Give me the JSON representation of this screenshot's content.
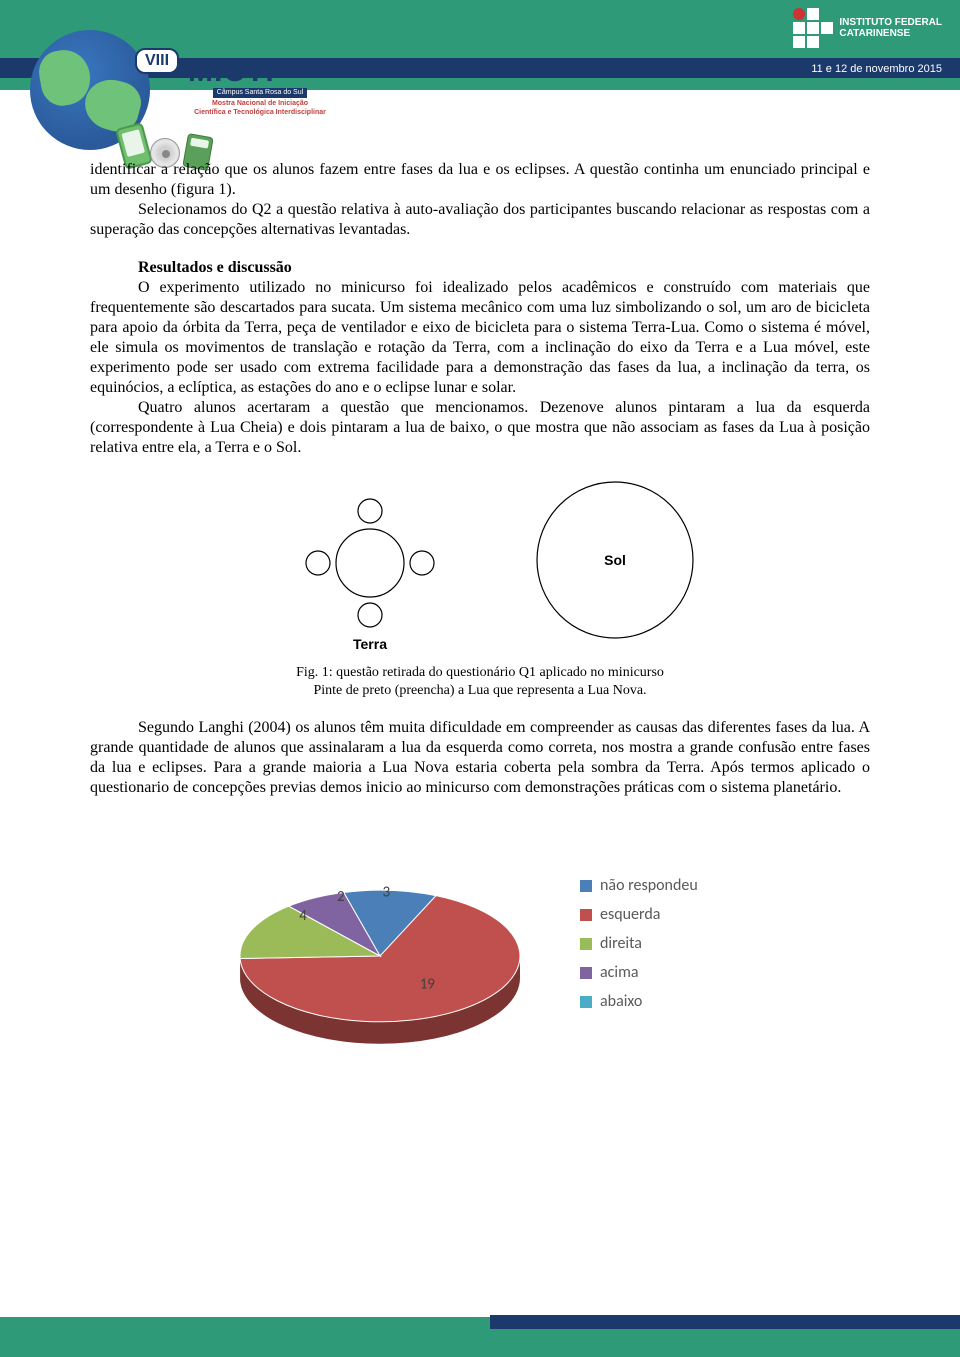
{
  "header": {
    "date_text": "11 e 12 de novembro 2015",
    "inst_line1": "INSTITUTO FEDERAL",
    "inst_line2": "CATARINENSE",
    "viii": "VIII",
    "micti": "MICTI",
    "campus": "Câmpus Santa Rosa do Sul",
    "sub1": "Mostra Nacional de Iniciação",
    "sub2": "Científica e Tecnológica Interdisciplinar"
  },
  "para1": "identificar a relação que os alunos fazem entre fases da lua e os eclipses. A questão continha um enunciado principal e um desenho (figura 1).",
  "para2": "Selecionamos do Q2 a questão relativa à auto-avaliação dos participantes buscando relacionar as respostas com a superação das concepções alternativas levantadas.",
  "section_title": "Resultados e discussão",
  "para3": "O experimento utilizado no minicurso foi idealizado pelos acadêmicos e construído com materiais que frequentemente são descartados para sucata. Um sistema mecânico com uma luz simbolizando o sol, um aro de bicicleta para apoio da órbita da Terra, peça de ventilador e eixo de bicicleta para o sistema Terra-Lua. Como o sistema é móvel, ele simula os movimentos de translação e rotação da Terra, com a inclinação do eixo da Terra e a Lua móvel, este experimento pode ser usado com extrema facilidade para a demonstração das fases da lua, a inclinação da terra, os equinócios, a eclíptica, as estações do ano e o eclipse lunar e solar.",
  "para4": "Quatro alunos acertaram a questão que mencionamos. Dezenove alunos pintaram a lua da esquerda (correspondente à Lua Cheia) e dois pintaram a lua de baixo, o que mostra que não associam as fases da Lua à posição relativa entre ela, a Terra e o Sol.",
  "fig1": {
    "terra_label": "Terra",
    "sol_label": "Sol",
    "terra_radius": 34,
    "moon_radius": 12,
    "sol_radius": 78,
    "label_fontfamily": "Arial, sans-serif",
    "label_fontsize": 14,
    "label_fontweight": "bold",
    "stroke": "#000000",
    "stroke_width": 1.2
  },
  "caption1_line1": "Fig. 1: questão retirada do questionário Q1 aplicado no minicurso",
  "caption1_line2": "Pinte de preto (preencha) a Lua que representa a Lua Nova.",
  "para5": "Segundo Langhi (2004) os alunos têm muita dificuldade em compreender as causas das diferentes fases da lua. A grande quantidade de alunos que assinalaram a lua da esquerda como correta, nos mostra a grande confusão entre fases da lua e eclipses. Para a grande maioria a Lua Nova estaria coberta pela sombra da Terra. Após termos aplicado o questionario de concepções previas demos inicio ao minicurso com demonstrações práticas com o sistema planetário.",
  "pie": {
    "type": "pie_3d",
    "total": 28,
    "slices": [
      {
        "label": "não respondeu",
        "value": 3,
        "color": "#4a7fb8",
        "data_label": "3"
      },
      {
        "label": "esquerda",
        "value": 19,
        "color": "#c0504d",
        "data_label": "19"
      },
      {
        "label": "direita",
        "value": 4,
        "color": "#9bbb59",
        "data_label": "4"
      },
      {
        "label": "acima",
        "value": 2,
        "color": "#8064a2",
        "data_label": "2"
      },
      {
        "label": "abaixo",
        "value": 0,
        "color": "#4bacc6",
        "data_label": ""
      }
    ],
    "legend_fontfamily": "Calibri, Arial, sans-serif",
    "legend_fontsize": 16,
    "legend_color": "#595959",
    "data_label_fontfamily": "Calibri, Arial, sans-serif",
    "data_label_fontsize": 15,
    "data_label_color": "#404040",
    "background": "#ffffff",
    "tilt_ry_over_rx": 0.47,
    "depth": 22
  }
}
